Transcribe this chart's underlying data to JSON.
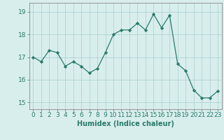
{
  "x": [
    0,
    1,
    2,
    3,
    4,
    5,
    6,
    7,
    8,
    9,
    10,
    11,
    12,
    13,
    14,
    15,
    16,
    17,
    18,
    19,
    20,
    21,
    22,
    23
  ],
  "y": [
    17.0,
    16.8,
    17.3,
    17.2,
    16.6,
    16.8,
    16.6,
    16.3,
    16.5,
    17.2,
    18.0,
    18.2,
    18.2,
    18.5,
    18.2,
    18.9,
    18.3,
    18.85,
    16.7,
    16.4,
    15.55,
    15.2,
    15.2,
    15.5
  ],
  "line_color": "#2a7a6a",
  "marker": "D",
  "marker_size": 2.2,
  "bg_color": "#d8eeed",
  "grid_color": "#a8cece",
  "xlabel": "Humidex (Indice chaleur)",
  "xlim": [
    -0.5,
    23.5
  ],
  "ylim": [
    14.7,
    19.4
  ],
  "yticks": [
    15,
    16,
    17,
    18,
    19
  ],
  "xticks": [
    0,
    1,
    2,
    3,
    4,
    5,
    6,
    7,
    8,
    9,
    10,
    11,
    12,
    13,
    14,
    15,
    16,
    17,
    18,
    19,
    20,
    21,
    22,
    23
  ],
  "xlabel_fontsize": 7.0,
  "tick_fontsize": 6.5
}
